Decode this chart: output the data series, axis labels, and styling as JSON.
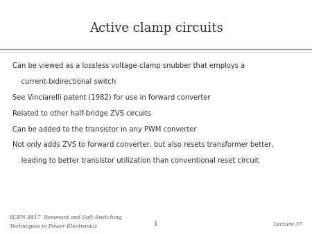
{
  "title": "Active clamp circuits",
  "title_fontsize": 13,
  "title_font": "serif",
  "title_color": "#333333",
  "background_color": "#ffffff",
  "header_line_color1": "#999999",
  "header_line_color2": "#bbbbbb",
  "bullet_lines": [
    "Can be viewed as a lossless voltage-clamp snubber that employs a",
    "    current-bidirectional switch",
    "See Vinciarelli patent (1982) for use in forward converter",
    "Related to other half-bridge ZVS circuits",
    "Can be added to the transistor in any PWM converter",
    "Not only adds ZVS to forward converter, but also resets transformer better,",
    "    leading to better transistor utilization than conventional reset circuit"
  ],
  "bullet_fontsize": 7.2,
  "bullet_font": "sans-serif",
  "bullet_color": "#333333",
  "footer_left_line1": "ECEN 5817  Resonant and Soft-Switching",
  "footer_left_line2": "Techniques in Power Electronics",
  "footer_center": "1",
  "footer_right": "Lecture 37",
  "footer_fontsize": 5.5,
  "footer_font": "serif",
  "footer_color": "#555555"
}
